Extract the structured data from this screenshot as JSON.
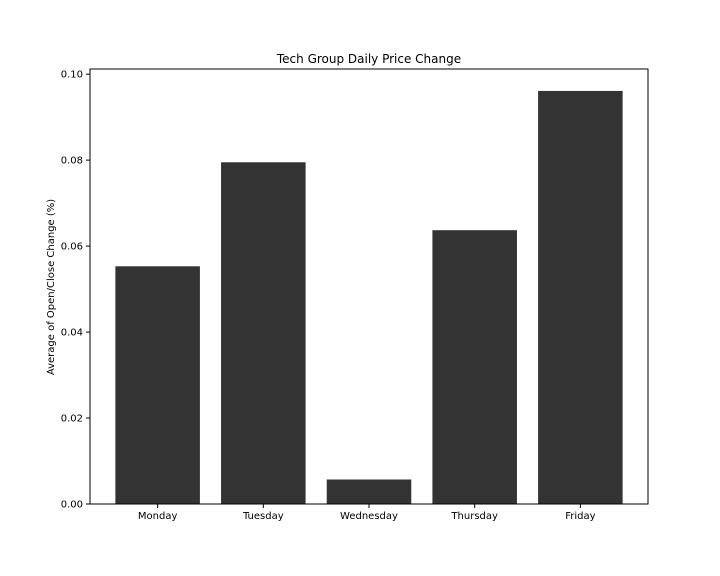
{
  "chart_data": {
    "type": "bar",
    "title": "Tech Group Daily Price Change",
    "xlabel": "",
    "ylabel": "Average of Open/Close Change (%)",
    "categories": [
      "Monday",
      "Tuesday",
      "Wednesday",
      "Thursday",
      "Friday"
    ],
    "values": [
      0.0553,
      0.0795,
      0.0057,
      0.0637,
      0.0961
    ],
    "ylim": [
      0,
      0.1012
    ],
    "yticks": [
      "0.00",
      "0.02",
      "0.04",
      "0.06",
      "0.08",
      "0.10"
    ],
    "grid": false,
    "legend": "none",
    "bar_color": "#333333"
  }
}
